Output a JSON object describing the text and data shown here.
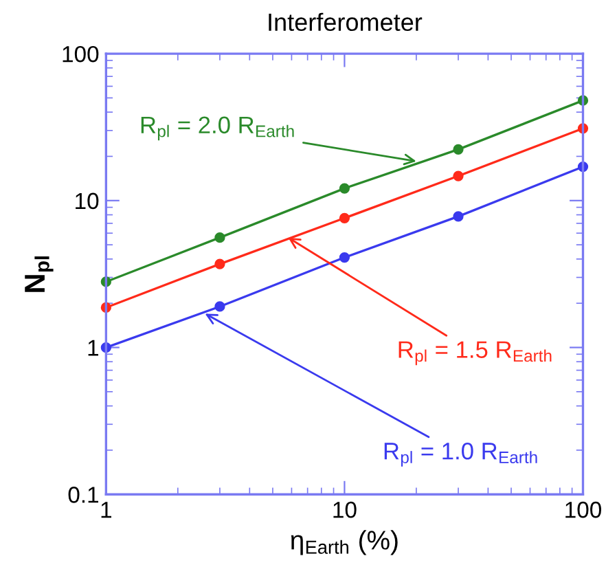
{
  "chart_data": {
    "type": "line",
    "title": "Interferometer",
    "xlabel": "η$_{Earth}$ (%)",
    "ylabel": "N$_{pl}$",
    "log": "xy",
    "xlim": [
      1,
      100
    ],
    "ylim": [
      0.1,
      100
    ],
    "xticks": [
      1,
      10,
      100
    ],
    "yticks": [
      0.1,
      1,
      10,
      100
    ],
    "grid": false,
    "marker": "circle",
    "line_style": "solid",
    "x": [
      1,
      3,
      10,
      30,
      100
    ],
    "series": [
      {
        "color": "#2a8a2a",
        "values": [
          2.8,
          5.6,
          12.1,
          22.3,
          48
        ]
      },
      {
        "color": "#ff2a1a",
        "values": [
          1.87,
          3.7,
          7.6,
          14.7,
          31
        ]
      },
      {
        "color": "#3a3aee",
        "values": [
          1.0,
          1.9,
          4.1,
          7.8,
          17
        ]
      }
    ],
    "annotations": [
      {
        "text": "R$_{pl}$ = 2.0 R$_{Earth}$",
        "x": 20,
        "y": 18.5
      },
      {
        "text": "R$_{pl}$ = 1.5 R$_{Earth}$",
        "x": 5.8,
        "y": 5.6
      },
      {
        "text": "R$_{pl}$ = 1.0 R$_{Earth}$",
        "x": 2.6,
        "y": 1.7
      }
    ]
  }
}
